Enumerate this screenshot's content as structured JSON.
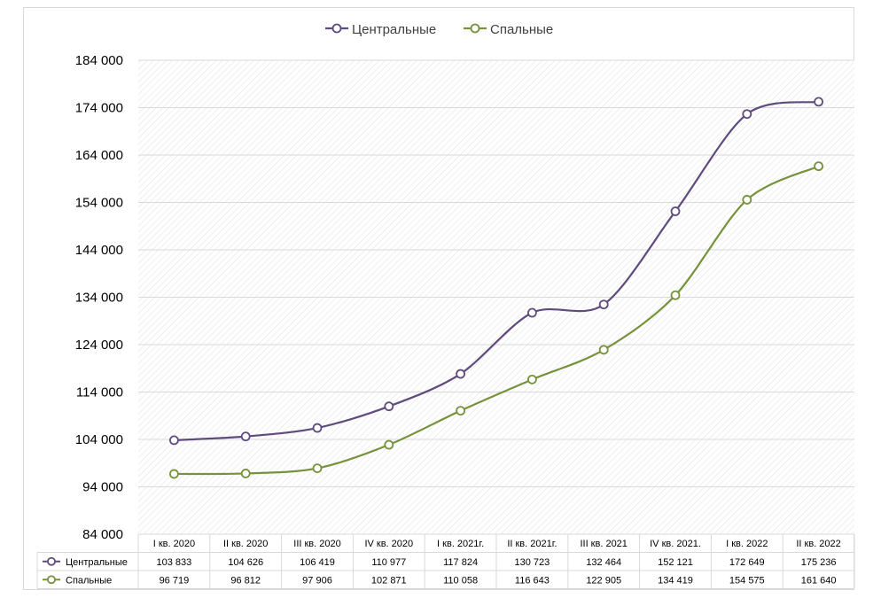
{
  "chart_data": {
    "type": "line",
    "categories": [
      "I кв. 2020",
      "II кв. 2020",
      "III кв. 2020",
      "IV кв. 2020",
      "I кв. 2021г.",
      "II кв. 2021г.",
      "III кв. 2021",
      "IV кв. 2021.",
      "I кв. 2022",
      "II кв. 2022"
    ],
    "series": [
      {
        "name": "Центральные",
        "color": "#5f4b7d",
        "values": [
          103833,
          104626,
          106419,
          110977,
          117824,
          130723,
          132464,
          152121,
          172649,
          175236
        ],
        "labels": [
          "103 833",
          "104 626",
          "106 419",
          "110 977",
          "117 824",
          "130 723",
          "132 464",
          "152 121",
          "172 649",
          "175 236"
        ]
      },
      {
        "name": "Спальные",
        "color": "#76923c",
        "values": [
          96719,
          96812,
          97906,
          102871,
          110058,
          116643,
          122905,
          134419,
          154575,
          161640
        ],
        "labels": [
          "96 719",
          "96 812",
          "97 906",
          "102 871",
          "110 058",
          "116 643",
          "122 905",
          "134 419",
          "154 575",
          "161 640"
        ]
      }
    ],
    "ylim": [
      84000,
      184000
    ],
    "yticks": [
      84000,
      94000,
      104000,
      114000,
      124000,
      134000,
      144000,
      154000,
      164000,
      174000,
      184000
    ],
    "ytick_labels": [
      "84 000",
      "94 000",
      "104 000",
      "114 000",
      "124 000",
      "134 000",
      "144 000",
      "154 000",
      "164 000",
      "174 000",
      "184 000"
    ],
    "smooth": true,
    "grid": true,
    "legend": "top-center",
    "data_table": true
  }
}
